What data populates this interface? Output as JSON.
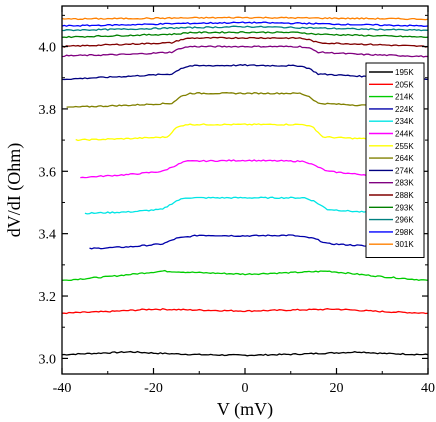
{
  "chart_data": {
    "type": "line",
    "xlabel": "V (mV)",
    "ylabel": "dV/dI (Ohm)",
    "xlim": [
      -40,
      40
    ],
    "ylim": [
      2.95,
      4.13
    ],
    "x_ticks": [
      "-40",
      "-20",
      "0",
      "20",
      "40"
    ],
    "y_ticks": [
      "3.0",
      "3.2",
      "3.4",
      "3.6",
      "3.8",
      "4.0"
    ],
    "legend_position": "right",
    "series": [
      {
        "name": "195K",
        "color": "#000000",
        "points": [
          [
            -40,
            3.012
          ],
          [
            -30,
            3.018
          ],
          [
            -25,
            3.021
          ],
          [
            -20,
            3.017
          ],
          [
            -10,
            3.012
          ],
          [
            0,
            3.01
          ],
          [
            10,
            3.013
          ],
          [
            20,
            3.018
          ],
          [
            25,
            3.021
          ],
          [
            30,
            3.016
          ],
          [
            40,
            3.012
          ]
        ]
      },
      {
        "name": "205K",
        "color": "#ff0000",
        "points": [
          [
            -40,
            3.145
          ],
          [
            -30,
            3.15
          ],
          [
            -20,
            3.158
          ],
          [
            -10,
            3.155
          ],
          [
            0,
            3.152
          ],
          [
            10,
            3.155
          ],
          [
            20,
            3.158
          ],
          [
            30,
            3.15
          ],
          [
            40,
            3.145
          ]
        ]
      },
      {
        "name": "214K",
        "color": "#00cc00",
        "points": [
          [
            -40,
            3.25
          ],
          [
            -30,
            3.262
          ],
          [
            -22,
            3.274
          ],
          [
            -18,
            3.28
          ],
          [
            -10,
            3.275
          ],
          [
            0,
            3.27
          ],
          [
            10,
            3.275
          ],
          [
            18,
            3.28
          ],
          [
            22,
            3.274
          ],
          [
            30,
            3.262
          ],
          [
            40,
            3.25
          ]
        ]
      },
      {
        "name": "224K",
        "color": "#0000aa",
        "points": [
          [
            -34,
            3.352
          ],
          [
            -25,
            3.358
          ],
          [
            -18,
            3.367
          ],
          [
            -15,
            3.385
          ],
          [
            -10,
            3.395
          ],
          [
            0,
            3.393
          ],
          [
            10,
            3.395
          ],
          [
            15,
            3.385
          ],
          [
            18,
            3.368
          ],
          [
            25,
            3.362
          ],
          [
            34,
            3.35
          ],
          [
            39,
            3.345
          ]
        ]
      },
      {
        "name": "234K",
        "color": "#00e5e5",
        "points": [
          [
            -35,
            3.465
          ],
          [
            -25,
            3.47
          ],
          [
            -18,
            3.478
          ],
          [
            -15,
            3.505
          ],
          [
            -13,
            3.515
          ],
          [
            0,
            3.515
          ],
          [
            13,
            3.515
          ],
          [
            15,
            3.505
          ],
          [
            18,
            3.478
          ],
          [
            25,
            3.47
          ],
          [
            38,
            3.46
          ]
        ]
      },
      {
        "name": "244K",
        "color": "#ff00ff",
        "points": [
          [
            -36,
            3.58
          ],
          [
            -25,
            3.59
          ],
          [
            -18,
            3.6
          ],
          [
            -15,
            3.62
          ],
          [
            -13,
            3.632
          ],
          [
            0,
            3.635
          ],
          [
            13,
            3.632
          ],
          [
            15,
            3.62
          ],
          [
            18,
            3.6
          ],
          [
            25,
            3.59
          ],
          [
            38,
            3.58
          ]
        ]
      },
      {
        "name": "255K",
        "color": "#ffff00",
        "points": [
          [
            -37,
            3.7
          ],
          [
            -25,
            3.705
          ],
          [
            -17,
            3.71
          ],
          [
            -15,
            3.74
          ],
          [
            -13,
            3.75
          ],
          [
            0,
            3.75
          ],
          [
            13,
            3.75
          ],
          [
            15,
            3.74
          ],
          [
            17,
            3.71
          ],
          [
            25,
            3.705
          ],
          [
            38,
            3.7
          ]
        ]
      },
      {
        "name": "264K",
        "color": "#808000",
        "points": [
          [
            -39,
            3.805
          ],
          [
            -25,
            3.812
          ],
          [
            -16,
            3.818
          ],
          [
            -14,
            3.84
          ],
          [
            -12,
            3.85
          ],
          [
            0,
            3.85
          ],
          [
            12,
            3.85
          ],
          [
            14,
            3.84
          ],
          [
            16,
            3.818
          ],
          [
            25,
            3.812
          ],
          [
            39,
            3.805
          ]
        ]
      },
      {
        "name": "274K",
        "color": "#000080",
        "points": [
          [
            -40,
            3.895
          ],
          [
            -25,
            3.905
          ],
          [
            -16,
            3.912
          ],
          [
            -14,
            3.93
          ],
          [
            -12,
            3.938
          ],
          [
            0,
            3.94
          ],
          [
            12,
            3.938
          ],
          [
            14,
            3.93
          ],
          [
            16,
            3.912
          ],
          [
            25,
            3.905
          ],
          [
            40,
            3.895
          ]
        ]
      },
      {
        "name": "283K",
        "color": "#800080",
        "points": [
          [
            -40,
            3.97
          ],
          [
            -25,
            3.975
          ],
          [
            -16,
            3.982
          ],
          [
            -14,
            3.995
          ],
          [
            -12,
            4.0
          ],
          [
            0,
            4.0
          ],
          [
            12,
            4.0
          ],
          [
            14,
            3.995
          ],
          [
            16,
            3.982
          ],
          [
            25,
            3.975
          ],
          [
            40,
            3.968
          ]
        ]
      },
      {
        "name": "288K",
        "color": "#800000",
        "points": [
          [
            -40,
            4.0
          ],
          [
            -25,
            4.008
          ],
          [
            -16,
            4.012
          ],
          [
            -14,
            4.022
          ],
          [
            -12,
            4.027
          ],
          [
            0,
            4.028
          ],
          [
            12,
            4.027
          ],
          [
            14,
            4.022
          ],
          [
            16,
            4.012
          ],
          [
            25,
            4.008
          ],
          [
            40,
            4.0
          ]
        ]
      },
      {
        "name": "293K",
        "color": "#008000",
        "points": [
          [
            -40,
            4.03
          ],
          [
            -25,
            4.036
          ],
          [
            -15,
            4.04
          ],
          [
            -12,
            4.045
          ],
          [
            0,
            4.046
          ],
          [
            12,
            4.045
          ],
          [
            15,
            4.04
          ],
          [
            25,
            4.036
          ],
          [
            40,
            4.03
          ]
        ]
      },
      {
        "name": "296K",
        "color": "#008080",
        "points": [
          [
            -40,
            4.052
          ],
          [
            -25,
            4.056
          ],
          [
            -14,
            4.06
          ],
          [
            0,
            4.064
          ],
          [
            14,
            4.06
          ],
          [
            25,
            4.056
          ],
          [
            40,
            4.052
          ]
        ]
      },
      {
        "name": "298K",
        "color": "#0000ff",
        "points": [
          [
            -40,
            4.066
          ],
          [
            -25,
            4.07
          ],
          [
            -14,
            4.074
          ],
          [
            0,
            4.077
          ],
          [
            14,
            4.074
          ],
          [
            25,
            4.07
          ],
          [
            40,
            4.066
          ]
        ]
      },
      {
        "name": "301K",
        "color": "#ff8000",
        "points": [
          [
            -40,
            4.088
          ],
          [
            -25,
            4.09
          ],
          [
            -10,
            4.092
          ],
          [
            0,
            4.093
          ],
          [
            10,
            4.092
          ],
          [
            25,
            4.09
          ],
          [
            40,
            4.088
          ]
        ]
      }
    ]
  }
}
